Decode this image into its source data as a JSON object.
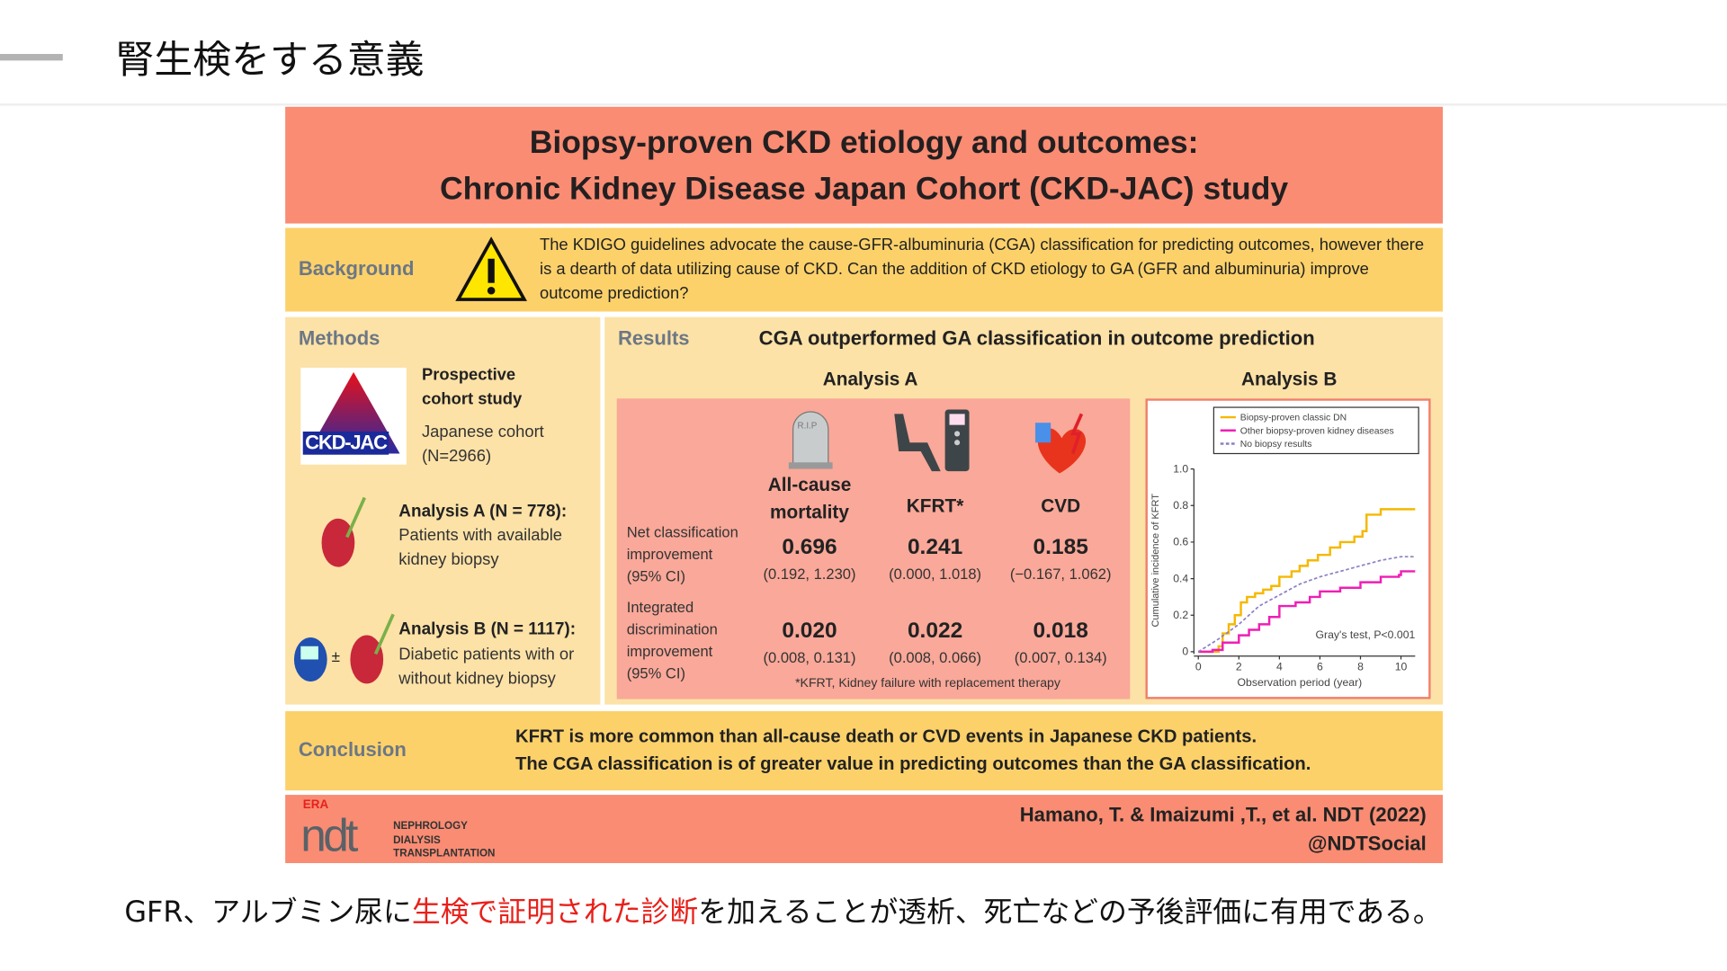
{
  "slide": {
    "title": "腎生検をする意義",
    "caption_pre": "GFR、アルブミン尿に",
    "caption_highlight": "生検で証明された診断",
    "caption_post": "を加えることが透析、死亡などの予後評価に有用である。",
    "highlight_color": "#e8201a"
  },
  "infographic": {
    "title_line1": "Biopsy-proven CKD etiology and outcomes:",
    "title_line2": "Chronic Kidney Disease Japan Cohort (CKD-JAC) study",
    "background": {
      "label": "Background",
      "icon": "warning-icon",
      "text": "The KDIGO guidelines advocate the cause-GFR-albuminuria (CGA) classification for predicting outcomes, however there is a dearth of data utilizing cause of CKD.  Can the addition of CKD etiology to GA (GFR and albuminuria) improve outcome prediction?"
    },
    "methods": {
      "label": "Methods",
      "logo_text": "CKD-JAC",
      "study_type": "Prospective cohort study",
      "cohort": "Japanese cohort",
      "n": "(N=2966)",
      "analysis_a_title": "Analysis A (N = 778):",
      "analysis_a_text": "Patients with available kidney biopsy",
      "analysis_b_title": "Analysis B (N = 1117):",
      "analysis_b_text": "Diabetic patients with or without kidney biopsy",
      "plusminus": "±"
    },
    "results": {
      "label": "Results",
      "headline": "CGA outperformed GA classification in outcome prediction",
      "analysis_a": {
        "title": "Analysis A",
        "rip": "R.I.P",
        "outcomes": [
          "All-cause mortality",
          "KFRT*",
          "CVD"
        ],
        "nri_label": "Net classification improvement (95% CI)",
        "nri": [
          {
            "value": "0.696",
            "ci": "(0.192, 1.230)"
          },
          {
            "value": "0.241",
            "ci": "(0.000, 1.018)"
          },
          {
            "value": "0.185",
            "ci": "(−0.167, 1.062)"
          }
        ],
        "idi_label": "Integrated discrimination improvement (95% CI)",
        "idi": [
          {
            "value": "0.020",
            "ci": "(0.008, 0.131)"
          },
          {
            "value": "0.022",
            "ci": "(0.008, 0.066)"
          },
          {
            "value": "0.018",
            "ci": "(0.007, 0.134)"
          }
        ],
        "footnote": "*KFRT, Kidney failure with replacement therapy"
      },
      "analysis_b": {
        "title": "Analysis B"
      }
    },
    "conclusion": {
      "label": "Conclusion",
      "line1": "KFRT is more common than all-cause death or CVD events in Japanese CKD patients.",
      "line2": "The CGA classification is of greater value in predicting outcomes than the GA classification."
    },
    "footer": {
      "logo_era": "ERA",
      "logo_ndt": "ndt",
      "journal_line1": "NEPHROLOGY",
      "journal_line2": "DIALYSIS",
      "journal_line3": "TRANSPLANTATION",
      "citation": "Hamano, T. & Imaizumi ,T., et al. NDT (2022)",
      "handle": "@NDTSocial"
    }
  },
  "chart_data": {
    "type": "line",
    "title": "",
    "xlabel": "Observation period (year)",
    "ylabel": "Cumulative incidence of KFRT",
    "xlim": [
      0,
      10.7
    ],
    "ylim": [
      0,
      1.0
    ],
    "xticks": [
      0,
      2,
      4,
      6,
      8,
      10
    ],
    "yticks": [
      0,
      0.2,
      0.4,
      0.6,
      0.8,
      1.0
    ],
    "ytick_labels": [
      "0",
      "0.2",
      "0.4",
      "0.6",
      "0.8",
      "1.0"
    ],
    "annotation": "Gray's test, P<0.001",
    "legend": "top",
    "series": [
      {
        "name": "Biopsy-proven classic DN",
        "color": "#f5b800",
        "style": "step",
        "points": [
          [
            0,
            0
          ],
          [
            0.9,
            0
          ],
          [
            1,
            0.03
          ],
          [
            1.2,
            0.1
          ],
          [
            1.5,
            0.15
          ],
          [
            1.8,
            0.2
          ],
          [
            2.1,
            0.27
          ],
          [
            2.4,
            0.3
          ],
          [
            2.8,
            0.32
          ],
          [
            3.2,
            0.34
          ],
          [
            3.6,
            0.36
          ],
          [
            4,
            0.41
          ],
          [
            4.6,
            0.44
          ],
          [
            5,
            0.47
          ],
          [
            5.4,
            0.5
          ],
          [
            5.9,
            0.53
          ],
          [
            6.5,
            0.57
          ],
          [
            7,
            0.6
          ],
          [
            7.7,
            0.63
          ],
          [
            8.1,
            0.66
          ],
          [
            8.3,
            0.75
          ],
          [
            9,
            0.78
          ],
          [
            10.7,
            0.78
          ]
        ]
      },
      {
        "name": "Other biopsy-proven kidney diseases",
        "color": "#ee1fb4",
        "style": "step",
        "points": [
          [
            0,
            0
          ],
          [
            0.7,
            0.01
          ],
          [
            1.2,
            0.05
          ],
          [
            2,
            0.09
          ],
          [
            2.5,
            0.12
          ],
          [
            3,
            0.15
          ],
          [
            3.5,
            0.19
          ],
          [
            4,
            0.25
          ],
          [
            4.8,
            0.27
          ],
          [
            5.5,
            0.3
          ],
          [
            6,
            0.33
          ],
          [
            7,
            0.35
          ],
          [
            8,
            0.38
          ],
          [
            9,
            0.41
          ],
          [
            9.9,
            0.42
          ],
          [
            10,
            0.44
          ],
          [
            10.7,
            0.44
          ]
        ]
      },
      {
        "name": "No biopsy results",
        "color": "#8e7fc4",
        "style": "dashed",
        "points": [
          [
            0,
            0
          ],
          [
            1,
            0.07
          ],
          [
            2,
            0.15
          ],
          [
            3,
            0.25
          ],
          [
            4,
            0.31
          ],
          [
            5,
            0.37
          ],
          [
            6,
            0.41
          ],
          [
            7,
            0.44
          ],
          [
            8,
            0.47
          ],
          [
            9,
            0.5
          ],
          [
            10,
            0.52
          ],
          [
            10.7,
            0.52
          ]
        ]
      }
    ]
  }
}
